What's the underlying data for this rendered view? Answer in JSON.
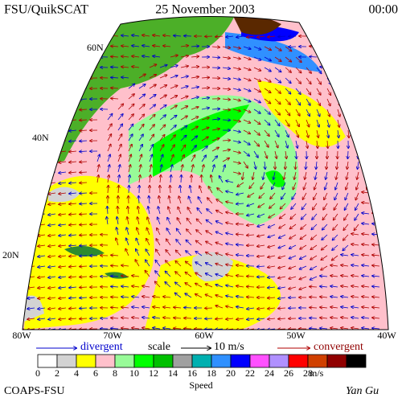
{
  "header": {
    "title": "FSU/QuikSCAT",
    "date": "25 November 2003",
    "time": "00:00"
  },
  "latitudes": [
    "60N",
    "40N",
    "20N"
  ],
  "longitudes": [
    "80W",
    "70W",
    "60W",
    "50W",
    "40W"
  ],
  "legend": {
    "divergent": "divergent",
    "scale": "scale",
    "scale_value": "10 m/s",
    "convergent": "convergent"
  },
  "colorbar": {
    "labels": [
      0,
      2,
      4,
      6,
      8,
      10,
      12,
      14,
      16,
      18,
      20,
      22,
      24,
      26,
      28
    ],
    "unit": "m/s",
    "title": "Speed",
    "colors": [
      "#ffffff",
      "#d3d3d3",
      "#ffff00",
      "#ffc0cb",
      "#98fb98",
      "#00ff00",
      "#00c000",
      "#a0a0a0",
      "#00b0b0",
      "#3090ff",
      "#0000ff",
      "#ff50ff",
      "#b090ff",
      "#ff0000",
      "#d04000",
      "#900000",
      "#000000"
    ]
  },
  "footer": {
    "left": "COAPS-FSU",
    "right": "Yan Gu"
  }
}
